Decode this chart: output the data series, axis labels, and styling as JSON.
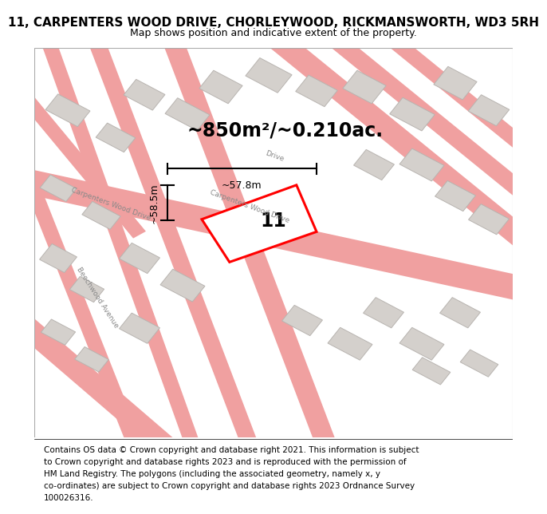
{
  "title": "11, CARPENTERS WOOD DRIVE, CHORLEYWOOD, RICKMANSWORTH, WD3 5RH",
  "subtitle": "Map shows position and indicative extent of the property.",
  "area_text": "~850m²/~0.210ac.",
  "label_11": "11",
  "dim_height": "~58.5m",
  "dim_width": "~57.8m",
  "footer_lines": [
    "Contains OS data © Crown copyright and database right 2021. This information is subject",
    "to Crown copyright and database rights 2023 and is reproduced with the permission of",
    "HM Land Registry. The polygons (including the associated geometry, namely x, y",
    "co-ordinates) are subject to Crown copyright and database rights 2023 Ordnance Survey",
    "100026316."
  ],
  "map_bg": "#f0eeea",
  "road_color": "#f0a0a0",
  "building_fill": "#d4d0cc",
  "building_edge": "#b8b4b0",
  "plot_color": "#ff0000",
  "road_label_carpenters": "Carpenters Wood Drive",
  "road_label_beechwood": "Beechwood Avenue",
  "road_label_drive": "Drive",
  "title_fontsize": 11,
  "subtitle_fontsize": 9,
  "footer_fontsize": 7.5
}
